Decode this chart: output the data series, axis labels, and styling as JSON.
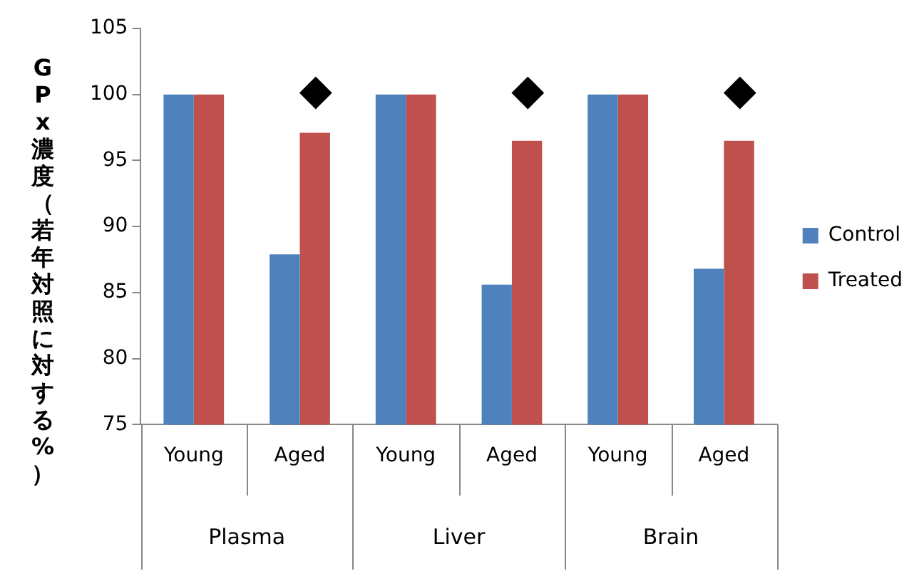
{
  "chart_data": {
    "type": "bar",
    "ylabel": "GPx濃度（若年対照に対する%）",
    "categories": [
      "Young",
      "Aged",
      "Young",
      "Aged",
      "Young",
      "Aged"
    ],
    "series": [
      {
        "name": "Control",
        "color": "#4f81bd",
        "values": [
          100,
          87.9,
          100,
          85.6,
          100,
          86.8
        ]
      },
      {
        "name": "Treated",
        "color": "#c0504d",
        "values": [
          100,
          97.1,
          100,
          96.5,
          100,
          96.5
        ]
      }
    ],
    "ylim": [
      75,
      105
    ],
    "yticks": [
      75,
      80,
      85,
      90,
      95,
      100,
      105
    ],
    "grid": false,
    "legend": "right",
    "annotations": [
      "◆",
      "◆",
      "◆",
      "Plasma",
      "Liver",
      "Brain"
    ]
  }
}
